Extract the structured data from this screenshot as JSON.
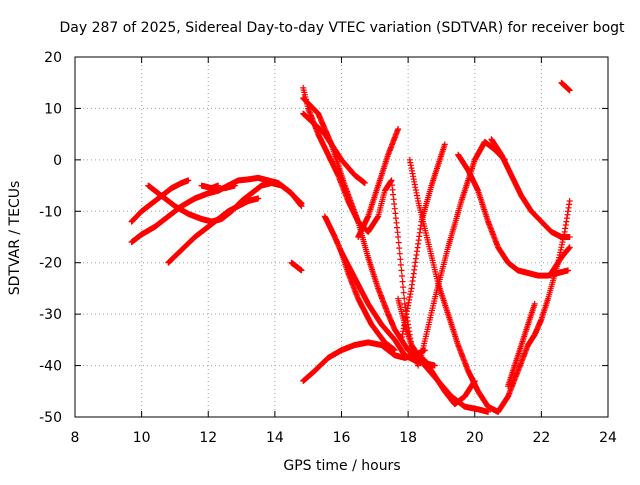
{
  "chart_data": {
    "type": "scatter",
    "title": "Day 287 of 2025, Sidereal Day-to-day VTEC variation (SDTVAR) for receiver bogt",
    "xlabel": "GPS time / hours",
    "ylabel": "SDTVAR / TECUs",
    "xlim": [
      8,
      24
    ],
    "ylim": [
      -50,
      20
    ],
    "xticks": [
      8,
      10,
      12,
      14,
      16,
      18,
      20,
      22,
      24
    ],
    "yticks": [
      -50,
      -40,
      -30,
      -20,
      -10,
      0,
      10,
      20
    ],
    "grid": true,
    "marker": "+",
    "color": "#ff0000",
    "series": [
      {
        "x": [
          9.7,
          10.0,
          10.3,
          10.6,
          10.9,
          11.2,
          11.4
        ],
        "y": [
          -12,
          -10,
          -8.5,
          -7,
          -5.5,
          -4.5,
          -4
        ]
      },
      {
        "x": [
          9.7,
          10.0,
          10.4,
          10.8,
          11.2,
          11.6,
          12.0,
          12.3,
          12.6,
          12.9,
          13.2,
          13.5,
          13.8,
          14.1,
          14.4,
          14.8
        ],
        "y": [
          -16,
          -14.5,
          -13,
          -11,
          -9,
          -7.5,
          -6.5,
          -6,
          -5,
          -4,
          -3.8,
          -3.5,
          -4,
          -4.5,
          -6,
          -8.5
        ]
      },
      {
        "x": [
          10.2,
          10.6,
          11.0,
          11.4,
          11.8,
          12.1,
          12.4,
          12.7,
          13.0,
          13.3,
          13.6,
          13.9,
          14.2,
          14.5,
          14.8
        ],
        "y": [
          -5,
          -7,
          -9,
          -10.5,
          -11.5,
          -12,
          -11.5,
          -10,
          -8,
          -6.5,
          -5,
          -4.5,
          -5,
          -6.5,
          -9
        ]
      },
      {
        "x": [
          10.8,
          11.2,
          11.6,
          12.0,
          12.3,
          12.6,
          12.9,
          13.2,
          13.5
        ],
        "y": [
          -20,
          -17.5,
          -15,
          -13,
          -11.5,
          -10,
          -9,
          -8,
          -7.5
        ]
      },
      {
        "x": [
          11.8,
          12.1,
          12.3
        ],
        "y": [
          -5,
          -5.5,
          -5
        ]
      },
      {
        "x": [
          12.5,
          12.8
        ],
        "y": [
          -5.5,
          -5
        ]
      },
      {
        "x": [
          14.5,
          14.8
        ],
        "y": [
          -20,
          -21.5
        ]
      },
      {
        "x": [
          14.85,
          15.0,
          15.3,
          15.6,
          15.9,
          16.2,
          16.5,
          16.8,
          17.1,
          17.3,
          17.5,
          17.7,
          17.9,
          18.1,
          18.3,
          18.5,
          18.8,
          19.1,
          19.4,
          19.7,
          20.0
        ],
        "y": [
          14,
          10,
          5,
          1,
          -3,
          -8,
          -12,
          -14,
          -11,
          -6,
          -4,
          -15,
          -28,
          -36,
          -38,
          -39,
          -42,
          -45,
          -47.5,
          -46,
          -43
        ]
      },
      {
        "x": [
          14.85,
          15.1,
          15.5,
          16.0,
          16.4,
          16.7
        ],
        "y": [
          9,
          7.5,
          5,
          0,
          -3,
          -4.5
        ]
      },
      {
        "x": [
          14.85,
          15.3,
          15.7,
          16.1,
          16.5,
          16.8,
          17.1,
          17.4,
          17.6,
          17.8,
          18.0,
          18.2,
          18.5,
          18.9,
          19.3,
          19.7,
          20.1,
          20.4
        ],
        "y": [
          12,
          9,
          3,
          -5,
          -12,
          -19,
          -25,
          -30,
          -33,
          -35,
          -37,
          -38,
          -40,
          -43,
          -46,
          -48,
          -48.5,
          -49
        ]
      },
      {
        "x": [
          14.85,
          15.2,
          15.6,
          16.0,
          16.4,
          16.8,
          17.2,
          17.6,
          17.9,
          18.2,
          18.5
        ],
        "y": [
          -43,
          -41,
          -38.5,
          -37,
          -36,
          -35.5,
          -36,
          -38,
          -38.5,
          -38,
          -37
        ]
      },
      {
        "x": [
          15.5,
          15.8,
          16.0,
          16.2,
          16.5,
          16.9,
          17.3,
          17.6
        ],
        "y": [
          -11,
          -15,
          -18,
          -22,
          -27,
          -32,
          -35.5,
          -37
        ]
      },
      {
        "x": [
          16.0,
          16.4,
          16.8,
          17.2,
          17.6,
          17.9,
          18.2,
          18.5,
          18.8
        ],
        "y": [
          -18,
          -23,
          -28,
          -32,
          -35,
          -38,
          -39,
          -39.5,
          -40
        ]
      },
      {
        "x": [
          16.5,
          16.8,
          17.1,
          17.4,
          17.7
        ],
        "y": [
          -15,
          -11,
          -5,
          1,
          6
        ]
      },
      {
        "x": [
          17.7,
          17.9,
          18.1,
          18.3
        ],
        "y": [
          -27,
          -32,
          -36,
          -40
        ]
      },
      {
        "x": [
          18.05,
          18.3,
          18.6,
          18.9,
          19.2,
          19.5,
          19.8,
          20.1,
          20.4,
          20.7
        ],
        "y": [
          0,
          -8,
          -16,
          -24,
          -30,
          -36,
          -41,
          -45,
          -48,
          -49
        ]
      },
      {
        "x": [
          17.8,
          18.1,
          18.4,
          18.7,
          19.0,
          19.1
        ],
        "y": [
          -35,
          -25,
          -12,
          -5,
          1,
          3
        ]
      },
      {
        "x": [
          18.4,
          18.8,
          19.2,
          19.6,
          20.0,
          20.3,
          20.6,
          20.9
        ],
        "y": [
          -38,
          -27,
          -17,
          -8,
          0,
          3.5,
          2,
          0
        ]
      },
      {
        "x": [
          19.5,
          19.8,
          20.1,
          20.4,
          20.7,
          21.0,
          21.3,
          21.6,
          21.9,
          22.2,
          22.5,
          22.8
        ],
        "y": [
          1,
          -2,
          -6,
          -12,
          -17,
          -20,
          -21.5,
          -22,
          -22.5,
          -22.5,
          -22,
          -21.5
        ]
      },
      {
        "x": [
          20.5,
          20.8,
          21.1,
          21.4,
          21.7,
          22.0,
          22.3,
          22.6,
          22.85
        ],
        "y": [
          4,
          1,
          -3,
          -7,
          -10,
          -12,
          -14,
          -15,
          -15
        ]
      },
      {
        "x": [
          20.7,
          21.0,
          21.3,
          21.6,
          21.8,
          22.0,
          22.2,
          22.5,
          22.7,
          22.85
        ],
        "y": [
          -49,
          -46,
          -41,
          -36,
          -34,
          -31,
          -27,
          -20,
          -14,
          -8
        ]
      },
      {
        "x": [
          21.0,
          21.3,
          21.6,
          21.8
        ],
        "y": [
          -44,
          -38,
          -32,
          -28
        ]
      },
      {
        "x": [
          22.3,
          22.6,
          22.85
        ],
        "y": [
          -22,
          -19,
          -17
        ]
      },
      {
        "x": [
          22.6,
          22.85
        ],
        "y": [
          15,
          13.5
        ]
      }
    ]
  }
}
